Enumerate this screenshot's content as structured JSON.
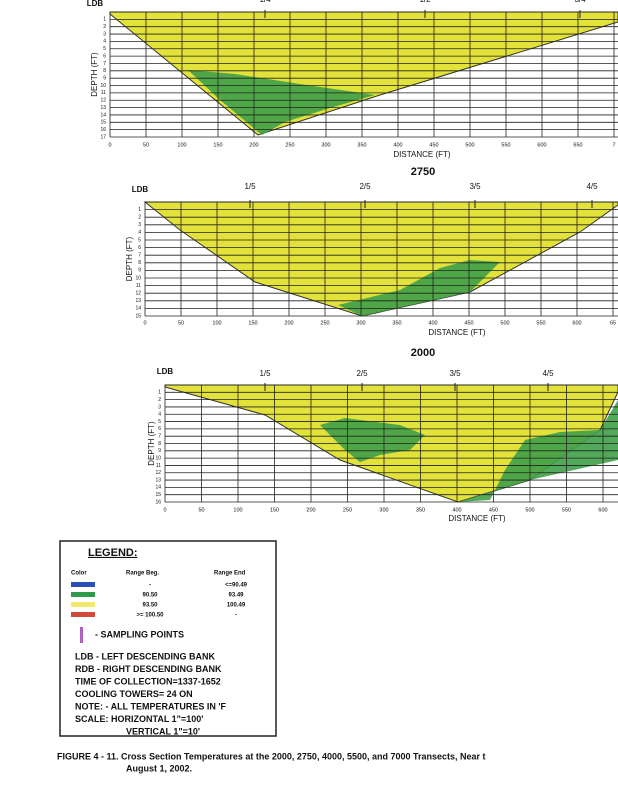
{
  "panels": [
    {
      "bank": "LDB",
      "fractions": [
        "1/4",
        "1/2",
        "3/4"
      ],
      "depth_ticks": [
        1,
        2,
        3,
        4,
        5,
        6,
        7,
        8,
        9,
        10,
        11,
        12,
        13,
        14,
        15,
        16,
        17
      ],
      "distance_ticks": [
        0,
        50,
        100,
        150,
        200,
        250,
        300,
        350,
        400,
        450,
        500,
        550,
        600,
        650,
        "7"
      ],
      "x_label": "DISTANCE (FT)",
      "y_label": "DEPTH (FT)"
    },
    {
      "title": "2750",
      "bank": "LDB",
      "fractions": [
        "1/5",
        "2/5",
        "3/5",
        "4/5"
      ],
      "depth_ticks": [
        1,
        2,
        3,
        4,
        5,
        6,
        7,
        8,
        9,
        10,
        11,
        12,
        13,
        14,
        15
      ],
      "distance_ticks": [
        0,
        50,
        100,
        150,
        200,
        250,
        300,
        350,
        400,
        450,
        500,
        550,
        600,
        "65"
      ],
      "x_label": "DISTANCE (FT)",
      "y_label": "DEPTH (FT)"
    },
    {
      "title": "2000",
      "bank": "LDB",
      "fractions": [
        "1/5",
        "2/5",
        "3/5",
        "4/5"
      ],
      "depth_ticks": [
        1,
        2,
        3,
        4,
        5,
        6,
        7,
        8,
        9,
        10,
        11,
        12,
        13,
        14,
        15,
        16
      ],
      "distance_ticks": [
        0,
        50,
        100,
        150,
        200,
        250,
        300,
        350,
        400,
        450,
        500,
        550,
        600
      ],
      "x_label": "DISTANCE (FT)",
      "y_label": "DEPTH (FT)"
    }
  ],
  "legend": {
    "title": "LEGEND:",
    "headers": [
      "Color",
      "Range Beg.",
      "Range End"
    ],
    "rows": [
      {
        "beg": "-",
        "end": "<=90.49"
      },
      {
        "beg": "90.50",
        "end": "93.49"
      },
      {
        "beg": "93.50",
        "end": "100.49"
      },
      {
        "beg": ">= 100.50",
        "end": "-"
      }
    ],
    "sampling": "- SAMPLING POINTS",
    "notes": [
      "LDB - LEFT DESCENDING BANK",
      "RDB - RIGHT DESCENDING BANK",
      "TIME OF COLLECTION=1337-1652",
      "COOLING TOWERS= 24 ON",
      "NOTE: - ALL TEMPERATURES IN 'F",
      "SCALE: HORIZONTAL  1\"=100'",
      "VERTICAL  1\"=10'"
    ]
  },
  "caption": [
    "FIGURE 4 - 11.  Cross Section Temperatures at the 2000, 2750, 4000, 5500, and 7000 Transects, Near t",
    "August 1, 2002."
  ]
}
